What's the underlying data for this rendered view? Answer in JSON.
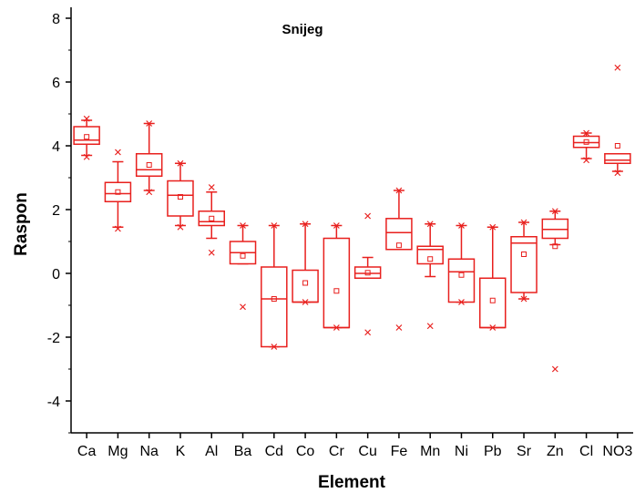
{
  "chart_data": {
    "type": "box",
    "title": "Snijeg",
    "xlabel": "Element",
    "ylabel": "Raspon",
    "ylim": [
      -5,
      8
    ],
    "yticks": [
      -4,
      -2,
      0,
      2,
      4,
      6,
      8
    ],
    "grid": false,
    "color": "#e8201e",
    "categories": [
      "Ca",
      "Mg",
      "Na",
      "K",
      "Al",
      "Ba",
      "Cd",
      "Co",
      "Cr",
      "Cu",
      "Fe",
      "Mn",
      "Ni",
      "Pb",
      "Sr",
      "Zn",
      "Cl",
      "NO3"
    ],
    "boxes": [
      {
        "q1": 4.05,
        "median": 4.18,
        "q3": 4.6,
        "whisker_low": 3.7,
        "whisker_high": 4.8,
        "mean": 4.28,
        "outliers": [
          3.65,
          4.85
        ]
      },
      {
        "q1": 2.25,
        "median": 2.5,
        "q3": 2.85,
        "whisker_low": 1.45,
        "whisker_high": 3.5,
        "mean": 2.55,
        "outliers": [
          1.4,
          3.8
        ]
      },
      {
        "q1": 3.05,
        "median": 3.25,
        "q3": 3.75,
        "whisker_low": 2.6,
        "whisker_high": 4.7,
        "mean": 3.4,
        "outliers": [
          2.55,
          4.7
        ]
      },
      {
        "q1": 1.8,
        "median": 2.45,
        "q3": 2.9,
        "whisker_low": 1.5,
        "whisker_high": 3.45,
        "mean": 2.4,
        "outliers": [
          1.45,
          3.45
        ]
      },
      {
        "q1": 1.5,
        "median": 1.62,
        "q3": 1.95,
        "whisker_low": 1.1,
        "whisker_high": 2.55,
        "mean": 1.72,
        "outliers": [
          0.65,
          2.7
        ]
      },
      {
        "q1": 0.3,
        "median": 0.65,
        "q3": 1.0,
        "whisker_low": 0.3,
        "whisker_high": 1.5,
        "mean": 0.55,
        "outliers": [
          -1.05,
          1.5
        ]
      },
      {
        "q1": -2.3,
        "median": -0.8,
        "q3": 0.2,
        "whisker_low": -2.3,
        "whisker_high": 1.5,
        "mean": -0.8,
        "outliers": [
          -2.3,
          1.5
        ]
      },
      {
        "q1": -0.9,
        "median": -0.9,
        "q3": 0.1,
        "whisker_low": -0.9,
        "whisker_high": 1.55,
        "mean": -0.3,
        "outliers": [
          -0.9,
          1.55
        ]
      },
      {
        "q1": -1.7,
        "median": -1.7,
        "q3": 1.1,
        "whisker_low": -1.7,
        "whisker_high": 1.5,
        "mean": -0.55,
        "outliers": [
          -1.7,
          1.5
        ]
      },
      {
        "q1": -0.15,
        "median": 0.0,
        "q3": 0.2,
        "whisker_low": -0.15,
        "whisker_high": 0.5,
        "mean": 0.02,
        "outliers": [
          -1.85,
          1.8
        ]
      },
      {
        "q1": 0.75,
        "median": 1.28,
        "q3": 1.72,
        "whisker_low": 0.75,
        "whisker_high": 2.6,
        "mean": 0.88,
        "outliers": [
          -1.7,
          2.6
        ]
      },
      {
        "q1": 0.3,
        "median": 0.75,
        "q3": 0.85,
        "whisker_low": -0.1,
        "whisker_high": 1.55,
        "mean": 0.45,
        "outliers": [
          -1.65,
          1.55
        ]
      },
      {
        "q1": -0.9,
        "median": 0.05,
        "q3": 0.45,
        "whisker_low": -0.9,
        "whisker_high": 1.5,
        "mean": -0.05,
        "outliers": [
          -0.9,
          1.5
        ]
      },
      {
        "q1": -1.7,
        "median": -1.7,
        "q3": -0.15,
        "whisker_low": -1.7,
        "whisker_high": 1.45,
        "mean": -0.85,
        "outliers": [
          -1.7,
          1.45
        ]
      },
      {
        "q1": -0.6,
        "median": 0.95,
        "q3": 1.15,
        "whisker_low": -0.8,
        "whisker_high": 1.6,
        "mean": 0.6,
        "outliers": [
          -0.8,
          1.6
        ]
      },
      {
        "q1": 1.1,
        "median": 1.38,
        "q3": 1.7,
        "whisker_low": 0.9,
        "whisker_high": 1.95,
        "mean": 0.85,
        "outliers": [
          -3.0,
          1.95
        ]
      },
      {
        "q1": 3.95,
        "median": 4.1,
        "q3": 4.3,
        "whisker_low": 3.6,
        "whisker_high": 4.4,
        "mean": 4.12,
        "outliers": [
          3.55,
          4.4
        ]
      },
      {
        "q1": 3.45,
        "median": 3.55,
        "q3": 3.75,
        "whisker_low": 3.2,
        "whisker_high": 3.75,
        "mean": 4.0,
        "outliers": [
          3.15,
          6.45
        ]
      }
    ]
  }
}
